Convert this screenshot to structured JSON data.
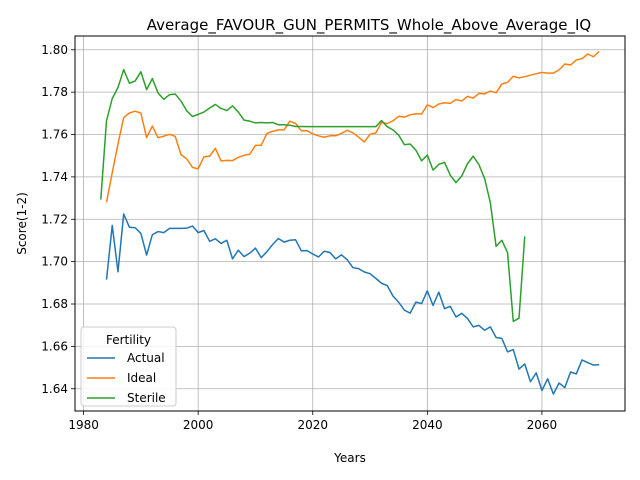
{
  "chart_data": {
    "type": "line",
    "title": "Average_FAVOUR_GUN_PERMITS_Whole_Above_Average_IQ",
    "xlabel": "Years",
    "ylabel": "Score(1-2)",
    "xlim": [
      1978.5,
      2074.5
    ],
    "ylim": [
      1.6295,
      1.8065
    ],
    "xticks": [
      1980,
      2000,
      2020,
      2040,
      2060
    ],
    "yticks": [
      1.64,
      1.66,
      1.68,
      1.7,
      1.72,
      1.74,
      1.76,
      1.78,
      1.8
    ],
    "xtick_labels": [
      "1980",
      "2000",
      "2020",
      "2040",
      "2060"
    ],
    "ytick_labels": [
      "1.64",
      "1.66",
      "1.68",
      "1.70",
      "1.72",
      "1.74",
      "1.76",
      "1.78",
      "1.80"
    ],
    "grid": true,
    "legend": {
      "title": "Fertility",
      "position": "lower-left"
    },
    "series": [
      {
        "name": "Actual",
        "color": "#1f77b4",
        "x": [
          1984,
          1985,
          1986,
          1987,
          1988,
          1989,
          1990,
          1991,
          1992,
          1993,
          1994,
          1995,
          1996,
          1997,
          1998,
          1999,
          2000,
          2001,
          2002,
          2003,
          2004,
          2005,
          2006,
          2007,
          2008,
          2009,
          2010,
          2011,
          2012,
          2013,
          2014,
          2015,
          2016,
          2017,
          2018,
          2019,
          2020,
          2021,
          2022,
          2023,
          2024,
          2025,
          2026,
          2027,
          2028,
          2029,
          2030,
          2031,
          2032,
          2033,
          2034,
          2035,
          2036,
          2037,
          2038,
          2039,
          2040,
          2041,
          2042,
          2043,
          2044,
          2045,
          2046,
          2047,
          2048,
          2049,
          2050,
          2051,
          2052,
          2053,
          2054,
          2055,
          2056,
          2057,
          2058,
          2059,
          2060,
          2061,
          2062,
          2063,
          2064,
          2065,
          2066,
          2067,
          2068,
          2069,
          2070
        ],
        "values": [
          1.6915,
          1.7171,
          1.6952,
          1.7225,
          1.7162,
          1.716,
          1.7133,
          1.7031,
          1.7127,
          1.7142,
          1.7137,
          1.7157,
          1.7157,
          1.7157,
          1.7158,
          1.7168,
          1.7137,
          1.7147,
          1.7096,
          1.7108,
          1.7086,
          1.7101,
          1.7013,
          1.7054,
          1.7024,
          1.704,
          1.7064,
          1.7019,
          1.7047,
          1.7081,
          1.7109,
          1.7092,
          1.7101,
          1.7103,
          1.7051,
          1.7052,
          1.7036,
          1.7022,
          1.7049,
          1.7043,
          1.7013,
          1.7032,
          1.7009,
          1.6972,
          1.6967,
          1.6951,
          1.6943,
          1.6921,
          1.6898,
          1.6887,
          1.6838,
          1.6808,
          1.6771,
          1.6757,
          1.6809,
          1.6802,
          1.6862,
          1.6793,
          1.6856,
          1.6778,
          1.6789,
          1.6739,
          1.6756,
          1.6732,
          1.6692,
          1.6699,
          1.6676,
          1.6692,
          1.6642,
          1.6638,
          1.6574,
          1.6585,
          1.6493,
          1.6517,
          1.6433,
          1.6475,
          1.6392,
          1.6447,
          1.6375,
          1.6427,
          1.6406,
          1.6479,
          1.647,
          1.6536,
          1.6523,
          1.6512,
          1.6513
        ]
      },
      {
        "name": "Ideal",
        "color": "#ff7f0e",
        "x": [
          1984,
          1985,
          1986,
          1987,
          1988,
          1989,
          1990,
          1991,
          1992,
          1993,
          1994,
          1995,
          1996,
          1997,
          1998,
          1999,
          2000,
          2001,
          2002,
          2003,
          2004,
          2005,
          2006,
          2007,
          2008,
          2009,
          2010,
          2011,
          2012,
          2013,
          2014,
          2015,
          2016,
          2017,
          2018,
          2019,
          2020,
          2021,
          2022,
          2023,
          2024,
          2025,
          2026,
          2027,
          2028,
          2029,
          2030,
          2031,
          2032,
          2033,
          2034,
          2035,
          2036,
          2037,
          2038,
          2039,
          2040,
          2041,
          2042,
          2043,
          2044,
          2045,
          2046,
          2047,
          2048,
          2049,
          2050,
          2051,
          2052,
          2053,
          2054,
          2055,
          2056,
          2057,
          2058,
          2059,
          2060,
          2061,
          2062,
          2063,
          2064,
          2065,
          2066,
          2067,
          2068,
          2069,
          2070
        ],
        "values": [
          1.728,
          1.742,
          1.7555,
          1.768,
          1.7702,
          1.771,
          1.7701,
          1.7585,
          1.764,
          1.7585,
          1.7592,
          1.7601,
          1.7591,
          1.7505,
          1.7485,
          1.7445,
          1.7438,
          1.7495,
          1.7498,
          1.7535,
          1.7475,
          1.7478,
          1.7477,
          1.7492,
          1.7502,
          1.7507,
          1.7549,
          1.7549,
          1.7605,
          1.7615,
          1.7622,
          1.7622,
          1.7663,
          1.7652,
          1.7618,
          1.7618,
          1.7603,
          1.7594,
          1.7587,
          1.7594,
          1.7594,
          1.7605,
          1.762,
          1.7608,
          1.7588,
          1.7565,
          1.7601,
          1.7607,
          1.7657,
          1.7652,
          1.7664,
          1.7686,
          1.7682,
          1.7693,
          1.7698,
          1.7697,
          1.774,
          1.7727,
          1.7744,
          1.775,
          1.7747,
          1.7765,
          1.7758,
          1.778,
          1.7772,
          1.7794,
          1.7792,
          1.7805,
          1.7797,
          1.7838,
          1.7846,
          1.7875,
          1.7867,
          1.7873,
          1.788,
          1.7887,
          1.7893,
          1.789,
          1.789,
          1.7905,
          1.7933,
          1.7928,
          1.7952,
          1.7958,
          1.798,
          1.7967,
          1.7992
        ]
      },
      {
        "name": "Sterile",
        "color": "#2ca02c",
        "x": [
          1983,
          1984,
          1985,
          1986,
          1987,
          1988,
          1989,
          1990,
          1991,
          1992,
          1993,
          1994,
          1995,
          1996,
          1997,
          1998,
          1999,
          2000,
          2001,
          2002,
          2003,
          2004,
          2005,
          2006,
          2007,
          2008,
          2009,
          2010,
          2011,
          2012,
          2013,
          2014,
          2015,
          2016,
          2017,
          2018,
          2019,
          2020,
          2021,
          2022,
          2023,
          2024,
          2025,
          2026,
          2027,
          2028,
          2029,
          2030,
          2031,
          2032,
          2033,
          2034,
          2035,
          2036,
          2037,
          2038,
          2039,
          2040,
          2041,
          2042,
          2043,
          2044,
          2045,
          2046,
          2047,
          2048,
          2049,
          2050,
          2051,
          2052,
          2053,
          2054,
          2055,
          2056,
          2057
        ],
        "values": [
          1.7293,
          1.7665,
          1.777,
          1.7822,
          1.7906,
          1.7842,
          1.7853,
          1.7896,
          1.7812,
          1.7864,
          1.7796,
          1.7766,
          1.7788,
          1.7791,
          1.7758,
          1.7712,
          1.7685,
          1.7695,
          1.7706,
          1.7725,
          1.7742,
          1.7723,
          1.7713,
          1.7735,
          1.7706,
          1.7668,
          1.7663,
          1.7655,
          1.7657,
          1.7655,
          1.7657,
          1.7646,
          1.7646,
          1.7644,
          1.7638,
          1.7638,
          1.7637,
          1.7637,
          1.7637,
          1.7637,
          1.7637,
          1.7637,
          1.7637,
          1.7637,
          1.7637,
          1.7637,
          1.7637,
          1.7637,
          1.7637,
          1.7666,
          1.7637,
          1.7622,
          1.7597,
          1.7552,
          1.7555,
          1.7526,
          1.7476,
          1.7503,
          1.7432,
          1.7459,
          1.7469,
          1.7408,
          1.7373,
          1.7404,
          1.7462,
          1.7498,
          1.7458,
          1.7392,
          1.7278,
          1.7072,
          1.7101,
          1.7042,
          1.6718,
          1.6733,
          1.7119
        ]
      }
    ]
  }
}
